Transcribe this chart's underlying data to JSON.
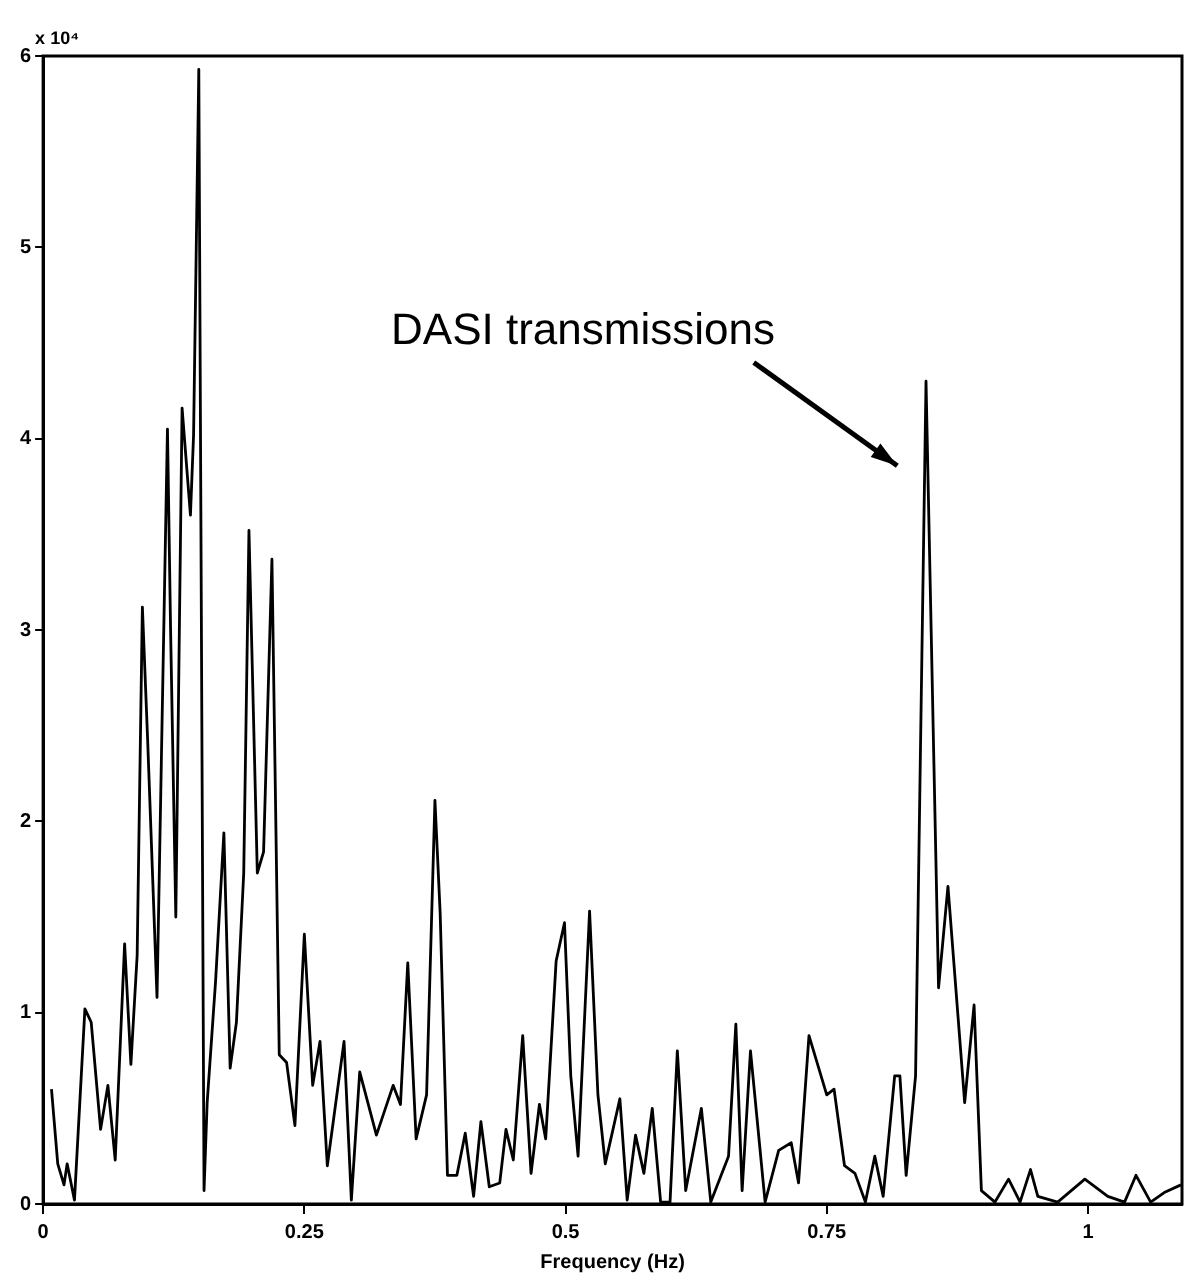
{
  "chart_data": {
    "type": "line",
    "xlabel": "Frequency (Hz)",
    "xlim": [
      0,
      1.09
    ],
    "xticks": [
      0,
      0.25,
      0.5,
      0.75,
      1
    ],
    "ylim": [
      0,
      6
    ],
    "yticks": [
      0,
      1,
      2,
      3,
      4,
      5,
      6
    ],
    "grid": false,
    "legend": false,
    "marker": "none",
    "line_style": "solid",
    "annotations": [
      "x 10⁴",
      "DASI transmissions"
    ],
    "series": [
      {
        "color": "#000000",
        "x": [
          0.008,
          0.014,
          0.02,
          0.023,
          0.03,
          0.04,
          0.046,
          0.055,
          0.062,
          0.069,
          0.078,
          0.084,
          0.09,
          0.095,
          0.1,
          0.109,
          0.119,
          0.122,
          0.127,
          0.133,
          0.141,
          0.144,
          0.149,
          0.154,
          0.157,
          0.165,
          0.173,
          0.179,
          0.185,
          0.192,
          0.197,
          0.205,
          0.211,
          0.219,
          0.226,
          0.233,
          0.241,
          0.25,
          0.258,
          0.265,
          0.272,
          0.288,
          0.295,
          0.303,
          0.319,
          0.335,
          0.342,
          0.349,
          0.357,
          0.367,
          0.375,
          0.38,
          0.387,
          0.396,
          0.404,
          0.412,
          0.419,
          0.427,
          0.437,
          0.443,
          0.45,
          0.459,
          0.467,
          0.475,
          0.481,
          0.491,
          0.499,
          0.505,
          0.512,
          0.523,
          0.531,
          0.538,
          0.552,
          0.559,
          0.567,
          0.575,
          0.583,
          0.591,
          0.6,
          0.607,
          0.615,
          0.63,
          0.639,
          0.656,
          0.663,
          0.669,
          0.677,
          0.691,
          0.704,
          0.716,
          0.723,
          0.733,
          0.75,
          0.757,
          0.767,
          0.777,
          0.787,
          0.796,
          0.804,
          0.815,
          0.82,
          0.826,
          0.835,
          0.845,
          0.857,
          0.866,
          0.882,
          0.891,
          0.898,
          0.911,
          0.924,
          0.935,
          0.945,
          0.952,
          0.971,
          0.997,
          1.019,
          1.035,
          1.046,
          1.06,
          1.073,
          1.089
        ],
        "values": [
          0.6,
          0.21,
          0.1,
          0.21,
          0.02,
          1.02,
          0.95,
          0.39,
          0.62,
          0.23,
          1.36,
          0.73,
          1.3,
          3.12,
          2.43,
          1.08,
          4.05,
          3.0,
          1.5,
          4.16,
          3.6,
          4.02,
          5.93,
          0.07,
          0.53,
          1.16,
          1.94,
          0.71,
          0.95,
          1.73,
          3.52,
          1.73,
          1.84,
          3.37,
          0.78,
          0.74,
          0.41,
          1.41,
          0.62,
          0.85,
          0.2,
          0.85,
          0.02,
          0.69,
          0.36,
          0.62,
          0.52,
          1.26,
          0.34,
          0.57,
          2.11,
          1.52,
          0.15,
          0.15,
          0.37,
          0.04,
          0.43,
          0.09,
          0.11,
          0.39,
          0.23,
          0.88,
          0.16,
          0.52,
          0.34,
          1.27,
          1.47,
          0.67,
          0.25,
          1.53,
          0.57,
          0.21,
          0.55,
          0.02,
          0.36,
          0.16,
          0.5,
          0.01,
          0.01,
          0.8,
          0.07,
          0.5,
          0.01,
          0.25,
          0.94,
          0.07,
          0.8,
          0.01,
          0.28,
          0.32,
          0.11,
          0.88,
          0.57,
          0.6,
          0.2,
          0.16,
          0.01,
          0.25,
          0.04,
          0.67,
          0.67,
          0.15,
          0.67,
          4.3,
          1.13,
          1.66,
          0.53,
          1.04,
          0.07,
          0.01,
          0.13,
          0.01,
          0.18,
          0.04,
          0.01,
          0.13,
          0.04,
          0.01,
          0.15,
          0.01,
          0.06,
          0.1
        ]
      }
    ]
  }
}
